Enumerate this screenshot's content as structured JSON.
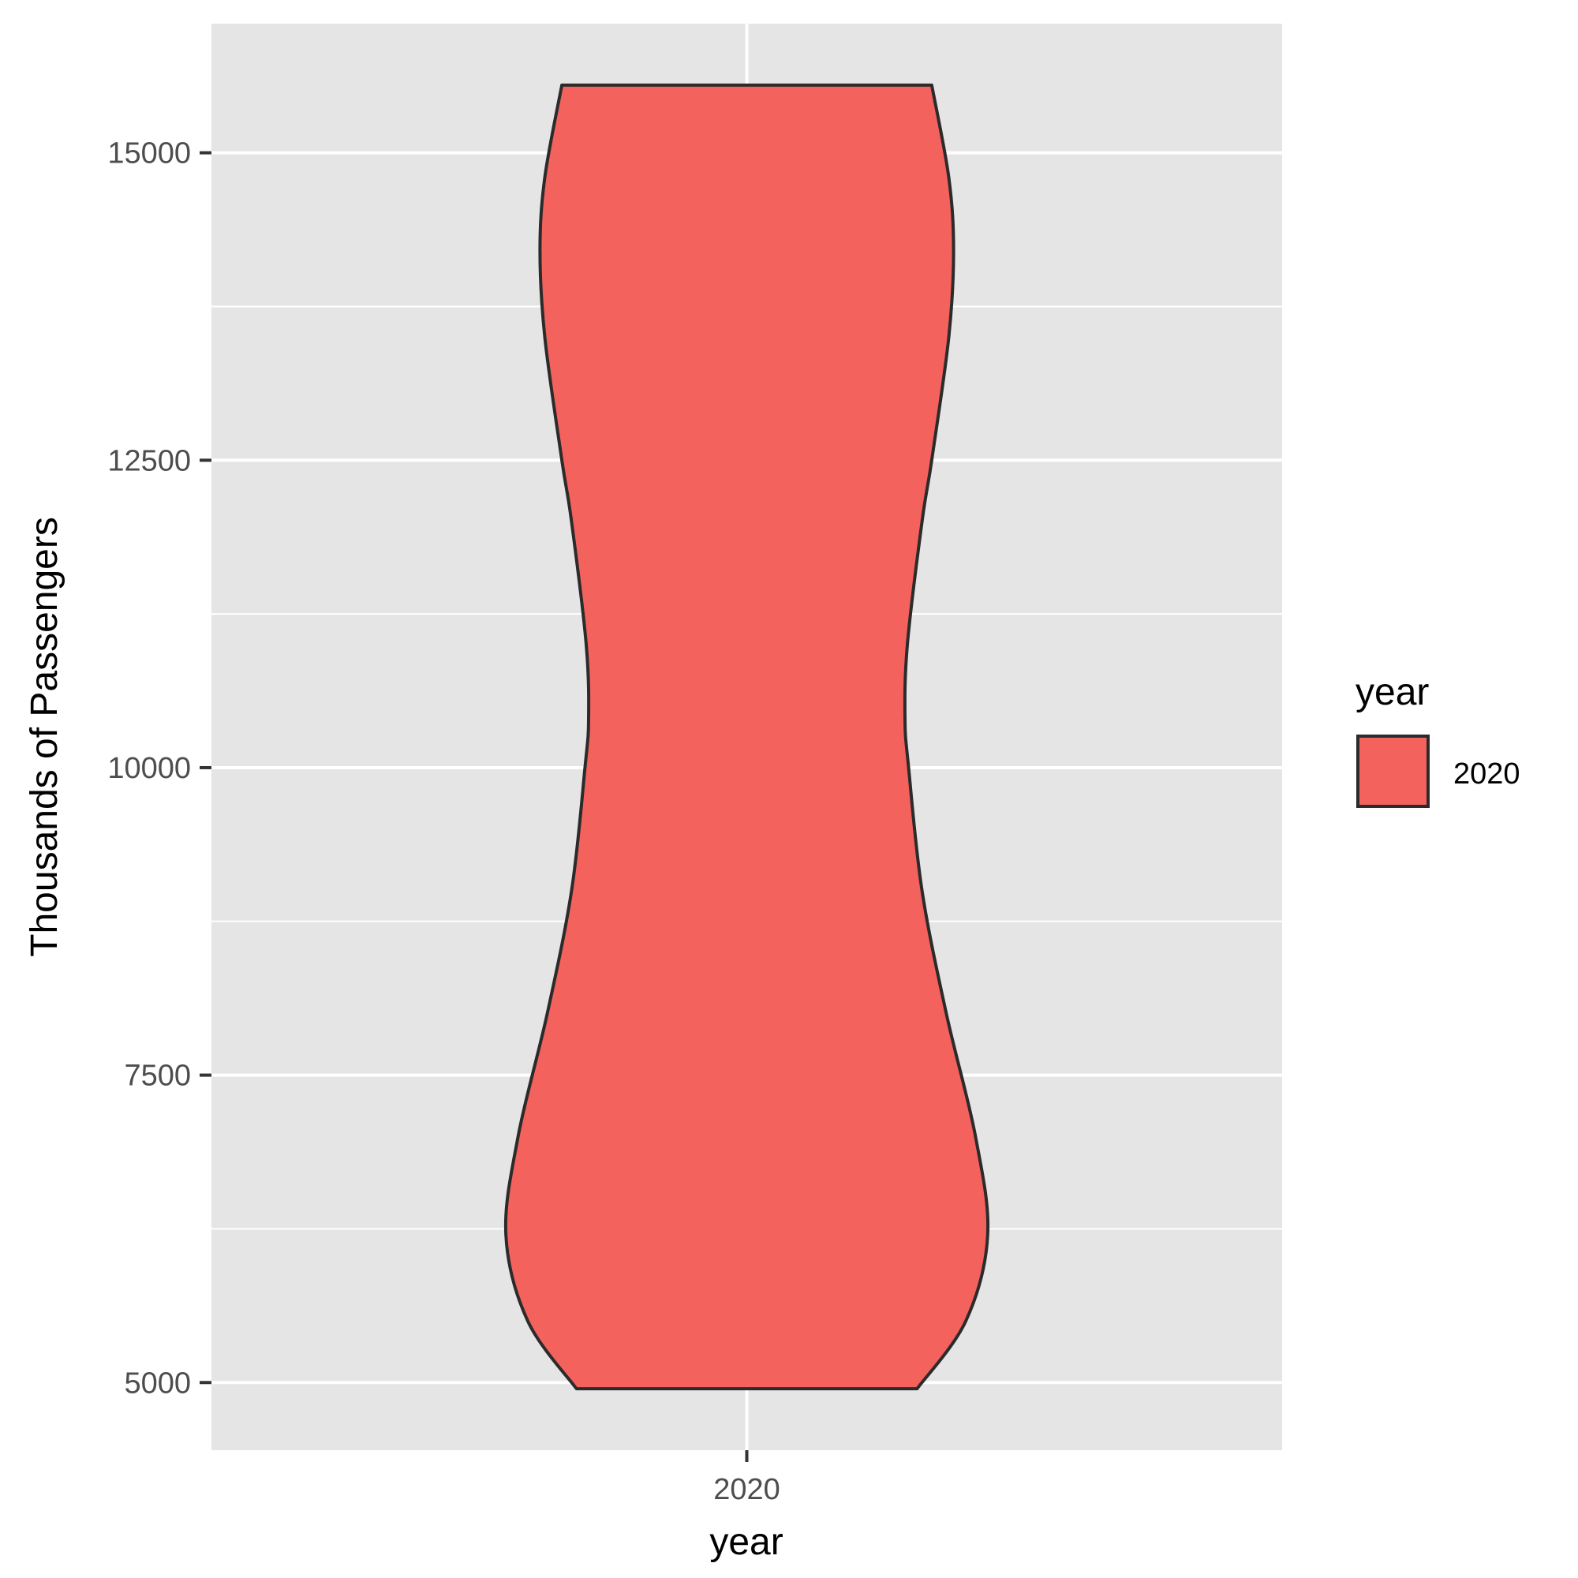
{
  "chart_data": {
    "type": "violin",
    "title": "",
    "xlabel": "year",
    "ylabel": "Thousands of Passengers",
    "ylim": [
      4450,
      16050
    ],
    "y_ticks": [
      5000,
      7500,
      10000,
      12500,
      15000
    ],
    "y_tick_labels": [
      "5000",
      "7500",
      "10000",
      "12500",
      "15000"
    ],
    "categories": [
      "2020"
    ],
    "legend": {
      "title": "year",
      "entries": [
        "2020"
      ],
      "position": "right"
    },
    "grid": true,
    "series": [
      {
        "category": "2020",
        "y_min": 4950,
        "y_max": 15550,
        "density_profile": [
          {
            "y": 4950,
            "half_width": 0.7
          },
          {
            "y": 5500,
            "half_width": 0.9
          },
          {
            "y": 6200,
            "half_width": 0.99
          },
          {
            "y": 7000,
            "half_width": 0.94
          },
          {
            "y": 8000,
            "half_width": 0.82
          },
          {
            "y": 9000,
            "half_width": 0.72
          },
          {
            "y": 10000,
            "half_width": 0.665
          },
          {
            "y": 10400,
            "half_width": 0.65
          },
          {
            "y": 11000,
            "half_width": 0.66
          },
          {
            "y": 12000,
            "half_width": 0.72
          },
          {
            "y": 12500,
            "half_width": 0.76
          },
          {
            "y": 13500,
            "half_width": 0.83
          },
          {
            "y": 14200,
            "half_width": 0.85
          },
          {
            "y": 14800,
            "half_width": 0.83
          },
          {
            "y": 15550,
            "half_width": 0.76
          }
        ]
      }
    ]
  },
  "colors": {
    "panel_bg": "#e5e5e5",
    "grid": "#ffffff",
    "violin_fill": "#f3625d",
    "violin_stroke": "#2b2b2b",
    "axis_tick": "#333333"
  }
}
